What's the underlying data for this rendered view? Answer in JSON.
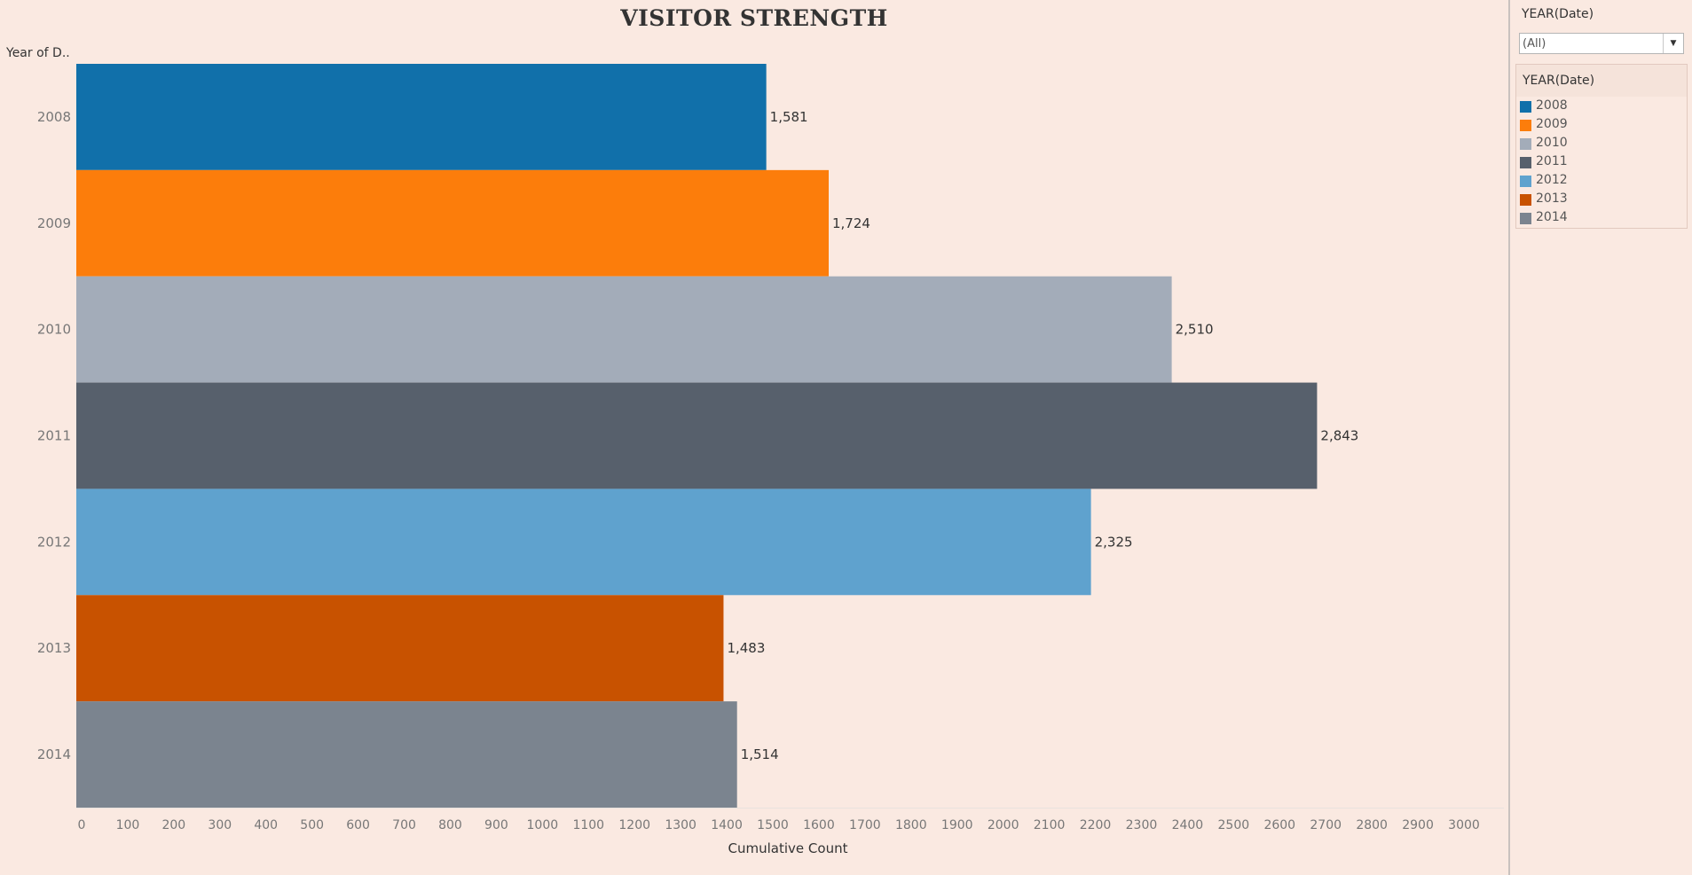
{
  "chart_data": {
    "type": "bar",
    "orientation": "horizontal",
    "title": "VISITOR STRENGTH",
    "ylabel": "Year of D..",
    "xlabel": "Cumulative Count",
    "categories": [
      "2008",
      "2009",
      "2010",
      "2011",
      "2012",
      "2013",
      "2014"
    ],
    "values": [
      1581,
      1724,
      2510,
      2843,
      2325,
      1483,
      1514
    ],
    "value_labels": [
      "1,581",
      "1,724",
      "2,510",
      "2,843",
      "2,325",
      "1,483",
      "1,514"
    ],
    "colors": [
      "#1170aa",
      "#fc7d0b",
      "#a3acb9",
      "#57606c",
      "#5fa2ce",
      "#c85200",
      "#7b848f"
    ],
    "xlim": [
      0,
      3000
    ],
    "xticks": [
      "0",
      "100",
      "200",
      "300",
      "400",
      "500",
      "600",
      "700",
      "800",
      "900",
      "1000",
      "1100",
      "1200",
      "1300",
      "1400",
      "1500",
      "1600",
      "1700",
      "1800",
      "1900",
      "2000",
      "2100",
      "2200",
      "2300",
      "2400",
      "2500",
      "2600",
      "2700",
      "2800",
      "2900",
      "3000"
    ],
    "grid": false,
    "legend_position": "right"
  },
  "filter": {
    "title": "YEAR(Date)",
    "value": "(All)"
  },
  "legend": {
    "title": "YEAR(Date)",
    "items": [
      {
        "label": "2008",
        "color": "#1170aa"
      },
      {
        "label": "2009",
        "color": "#fc7d0b"
      },
      {
        "label": "2010",
        "color": "#a3acb9"
      },
      {
        "label": "2011",
        "color": "#57606c"
      },
      {
        "label": "2012",
        "color": "#5fa2ce"
      },
      {
        "label": "2013",
        "color": "#c85200"
      },
      {
        "label": "2014",
        "color": "#7b848f"
      }
    ]
  }
}
